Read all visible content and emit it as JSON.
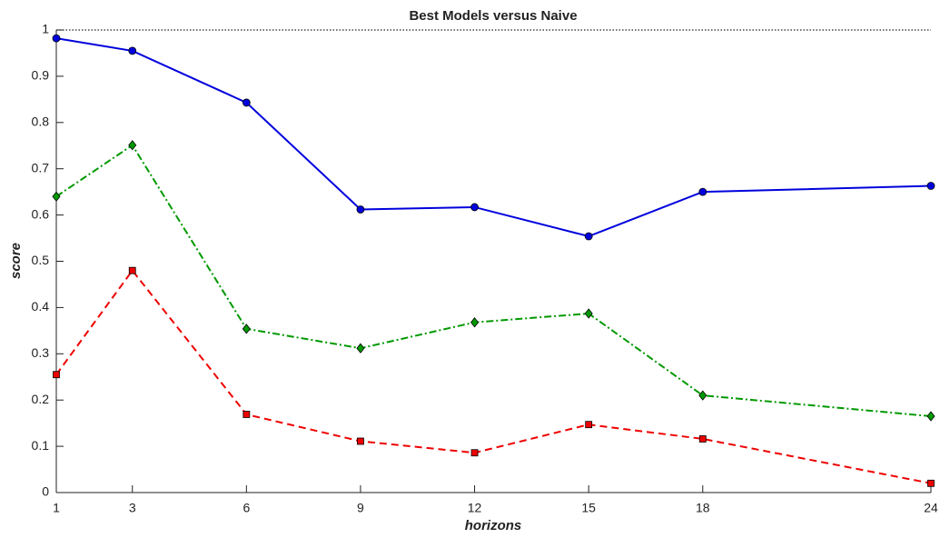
{
  "chart_data": {
    "type": "line",
    "title": "Best Models versus Naive",
    "x_label": "horizons",
    "y_label": "score",
    "x": [
      1,
      3,
      6,
      9,
      12,
      15,
      18,
      24
    ],
    "series": [
      {
        "color": "#0000dd",
        "marker": "circle",
        "linestyle": "solid",
        "values": [
          0.982,
          0.955,
          0.843,
          0.612,
          0.617,
          0.554,
          0.65,
          0.663
        ]
      },
      {
        "color": "#009900",
        "marker": "diamond",
        "linestyle": "dashdot",
        "values": [
          0.64,
          0.751,
          0.354,
          0.312,
          0.368,
          0.387,
          0.21,
          0.165
        ]
      },
      {
        "color": "#ee0000",
        "marker": "square",
        "linestyle": "dashed",
        "values": [
          0.255,
          0.48,
          0.169,
          0.111,
          0.086,
          0.147,
          0.116,
          0.02
        ]
      }
    ],
    "xlim": [
      1,
      24
    ],
    "xticks": [
      1,
      3,
      6,
      9,
      12,
      15,
      18,
      24
    ],
    "ylim": [
      0,
      1
    ],
    "yticks": [
      0,
      0.1,
      0.2,
      0.3,
      0.4,
      0.5,
      0.6,
      0.7,
      0.8,
      0.9,
      1
    ],
    "grid": false
  }
}
